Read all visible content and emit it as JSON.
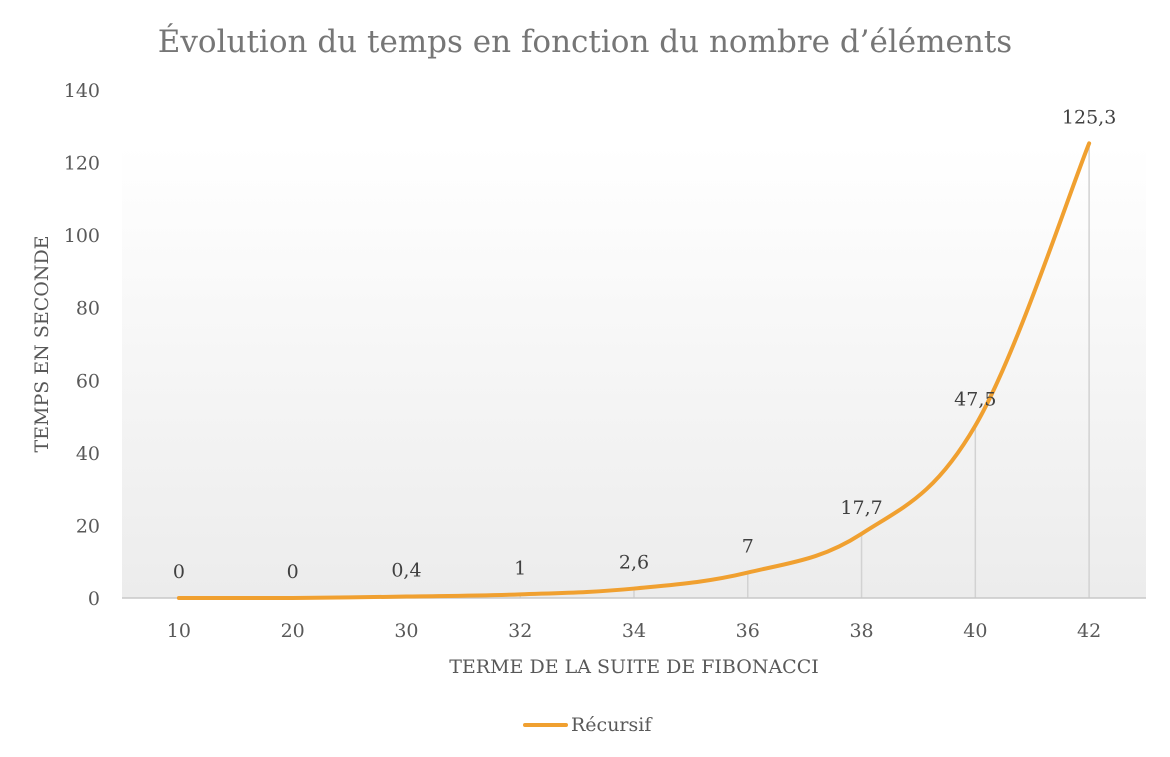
{
  "chart_data": {
    "type": "line",
    "title": "Évolution du temps en fonction du nombre d’éléments",
    "xlabel": "TERME DE LA SUITE DE FIBONACCI",
    "ylabel": "TEMPS EN SECONDE",
    "categories": [
      "10",
      "20",
      "30",
      "32",
      "34",
      "36",
      "38",
      "40",
      "42"
    ],
    "series": [
      {
        "name": "Récursif",
        "values": [
          0,
          0,
          0.4,
          1,
          2.6,
          7,
          17.7,
          47.5,
          125.3
        ],
        "data_labels": [
          "0",
          "0",
          "0,4",
          "1",
          "2,6",
          "7",
          "17,7",
          "47,5",
          "125,3"
        ],
        "color": "#F0A030"
      }
    ],
    "y_ticks": [
      "0",
      "20",
      "40",
      "60",
      "80",
      "100",
      "120",
      "140"
    ],
    "ylim": [
      0,
      140
    ],
    "grid": false,
    "drop_lines": true,
    "legend_position": "bottom",
    "colors": {
      "plot_gradient_top": "#ffffff",
      "plot_gradient_bottom": "#ececec",
      "axis_line": "#c8c8c8",
      "drop_line": "#d2d2d2"
    }
  }
}
